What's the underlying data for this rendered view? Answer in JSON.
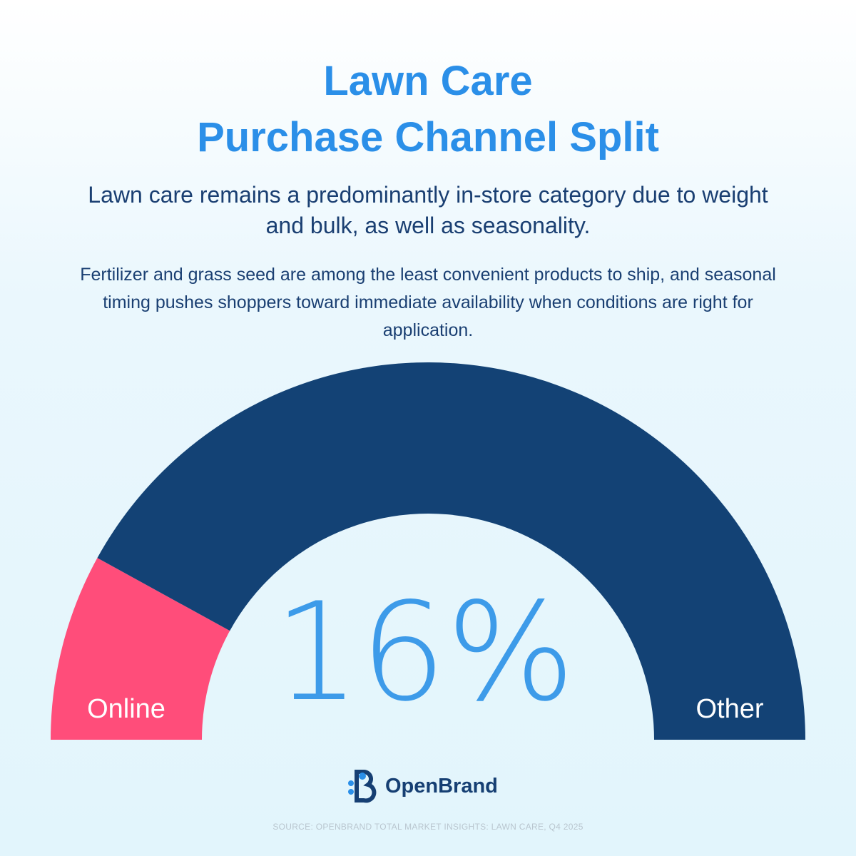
{
  "chart_data": {
    "type": "gauge",
    "title": [
      "Lawn Care",
      "Purchase Channel Split"
    ],
    "subtitle": "Lawn care remains a predominantly in-store category due to weight and bulk, as well as seasonality.",
    "description": "Fertilizer and grass seed are among the least convenient products to ship, and seasonal timing pushes shoppers toward immediate availability when conditions are right for application.",
    "categories": [
      "Online",
      "Other"
    ],
    "values": [
      16,
      84
    ],
    "value_labels": [
      "16%",
      null
    ],
    "colors": [
      "#ff4d7a",
      "#134275"
    ]
  },
  "brand": "OpenBrand",
  "source": "SOURCE: OPENBRAND TOTAL MARKET INSIGHTS: LAWN CARE, Q4 2025"
}
